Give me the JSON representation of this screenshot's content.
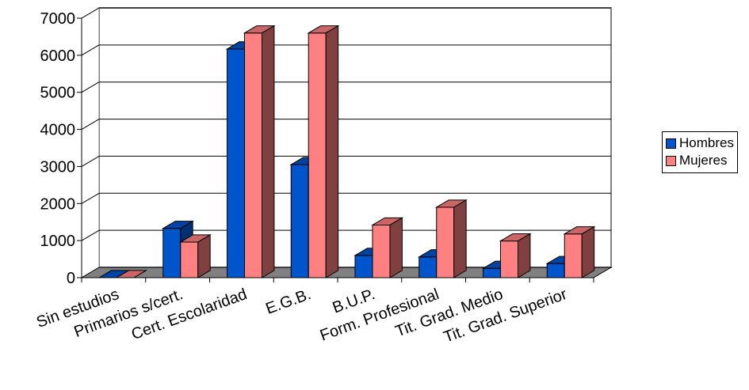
{
  "chart_data": {
    "type": "bar",
    "categories": [
      "Sin estudios",
      "Primarios s/cert.",
      "Cert. Escolaridad",
      "E.G.B.",
      "B.U.P.",
      "Form. Profesional",
      "Tit. Grad. Medio",
      "Tit. Grad. Superior"
    ],
    "series": [
      {
        "name": "Hombres",
        "values": [
          0,
          1330,
          6170,
          3050,
          600,
          560,
          250,
          380
        ]
      },
      {
        "name": "Mujeres",
        "values": [
          0,
          960,
          6600,
          6600,
          1420,
          1900,
          990,
          1180
        ]
      }
    ],
    "y_ticks": [
      "0",
      "1000",
      "2000",
      "3000",
      "4000",
      "5000",
      "6000",
      "7000"
    ],
    "ylim": [
      0,
      7000
    ],
    "grid": true,
    "legend_position": "right",
    "colors": {
      "Hombres": "#0055cc",
      "Mujeres": "#ff8080"
    }
  }
}
